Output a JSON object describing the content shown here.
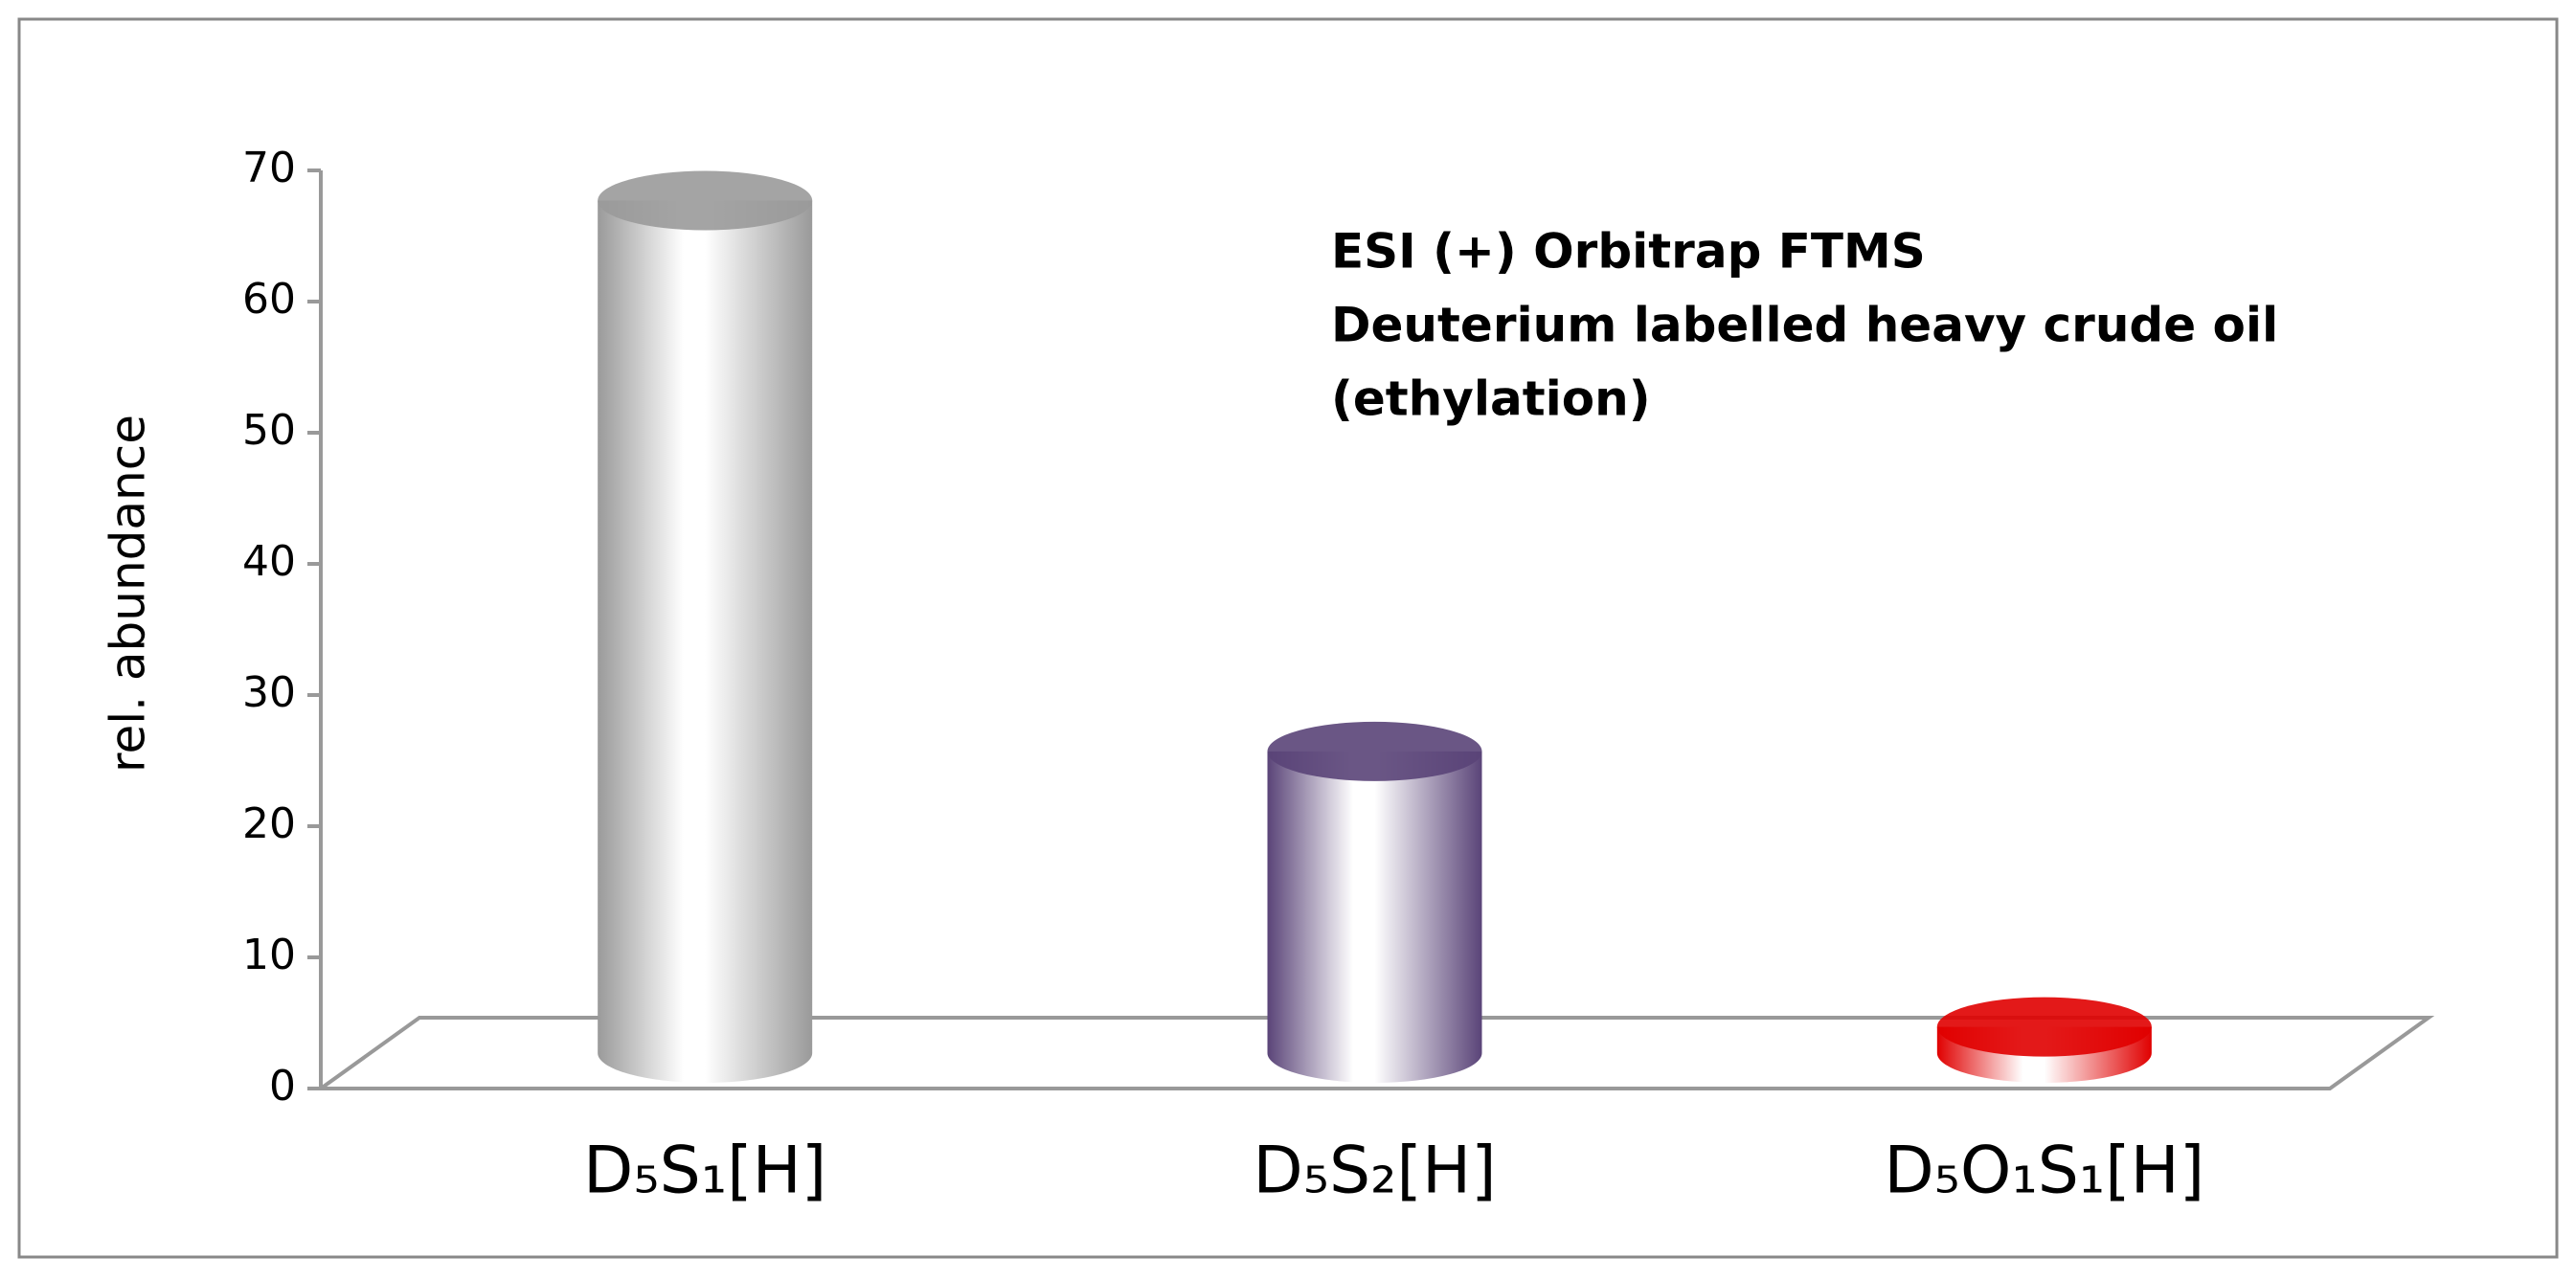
{
  "chart_data": {
    "type": "bar3d",
    "y_label": "rel. abundance",
    "annotation": [
      "ESI (+) Orbitrap FTMS",
      "Deuterium labelled heavy crude oil",
      "(ethylation)"
    ],
    "categories": [
      "D₅S₁[H]",
      "D₅S₂[H]",
      "D₅O₁S₁[H]"
    ],
    "values": [
      65,
      23,
      2
    ],
    "colors": [
      "#9a9a9a",
      "#5a4478",
      "#e00000"
    ],
    "ylim": [
      0,
      70
    ],
    "yticks": [
      0,
      10,
      20,
      30,
      40,
      50,
      60,
      70
    ],
    "grid": false
  }
}
